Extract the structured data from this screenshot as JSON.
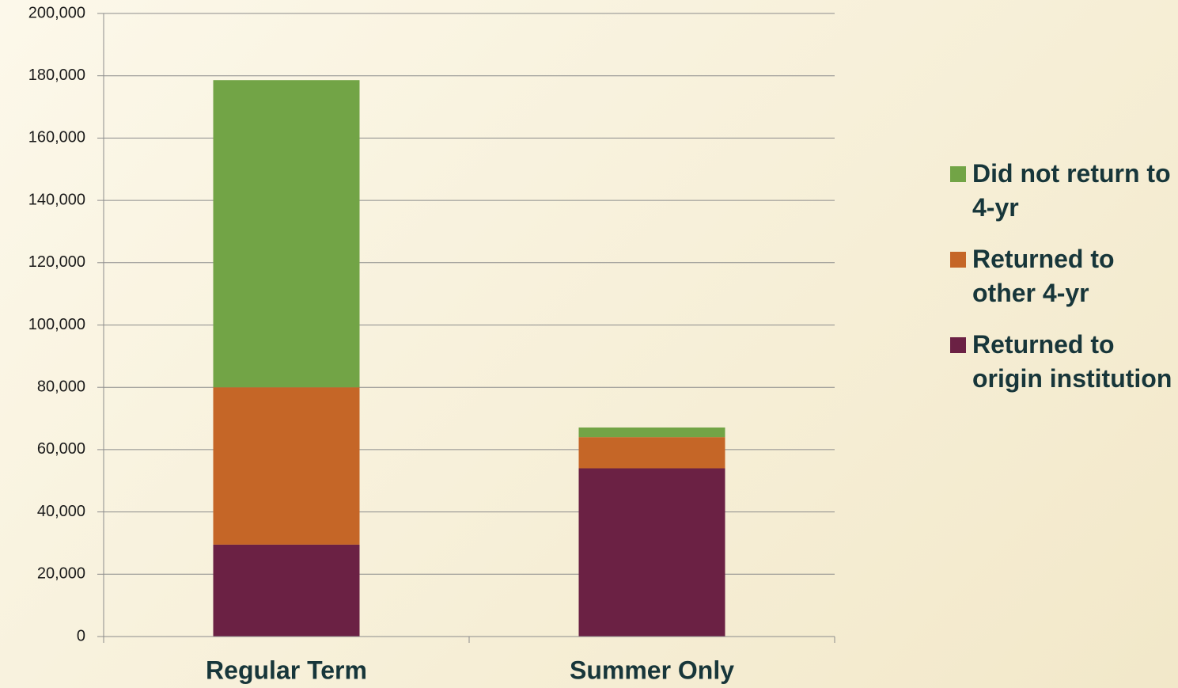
{
  "chart_data": {
    "type": "stacked_bar",
    "categories": [
      "Regular Term",
      "Summer Only"
    ],
    "series": [
      {
        "name": "Returned to origin institution",
        "color": "#6b2144",
        "values": [
          29500,
          54000
        ]
      },
      {
        "name": "Returned to other 4-yr",
        "color": "#c56627",
        "values": [
          50500,
          10000
        ]
      },
      {
        "name": "Did not return to 4-yr",
        "color": "#72a446",
        "values": [
          98600,
          3100
        ]
      }
    ],
    "ylim": [
      0,
      200000
    ],
    "yticks": [
      0,
      {
        "value": 20000,
        "label": "20,000"
      },
      {
        "value": 40000,
        "label": "40,000"
      },
      {
        "value": 60000,
        "label": "60,000"
      },
      {
        "value": 80000,
        "label": "80,000"
      },
      {
        "value": 100000,
        "label": "100,000"
      },
      {
        "value": 120000,
        "label": "120,000"
      },
      {
        "value": 140000,
        "label": "140,000"
      },
      {
        "value": 160000,
        "label": "160,000"
      },
      {
        "value": 180000,
        "label": "180,000"
      },
      {
        "value": 200000,
        "label": "200,000"
      }
    ],
    "grid": true,
    "legend": "right"
  }
}
